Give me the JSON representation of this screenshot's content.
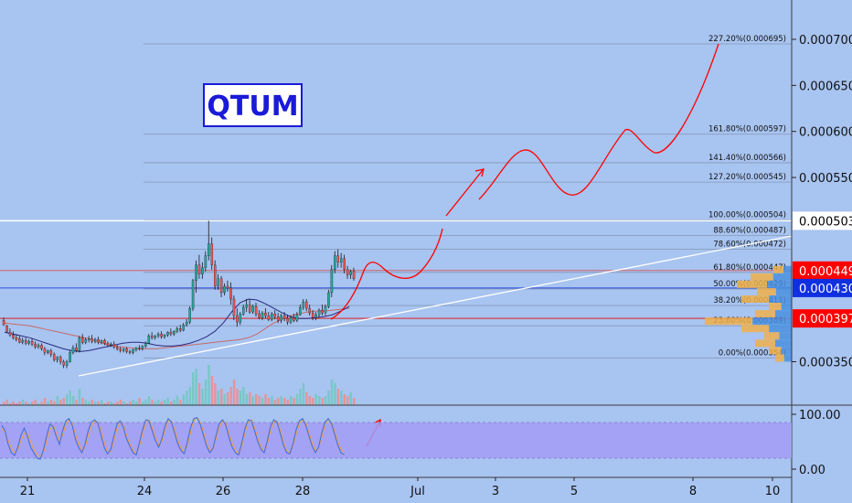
{
  "chart_data": {
    "type": "candlestick",
    "symbol": "QTUM",
    "title": "QTUM",
    "price_axis": {
      "ticks": [
        "0.000700",
        "0.000650",
        "0.000600",
        "0.000550",
        "0.000350"
      ],
      "range": [
        0.00031,
        0.00074
      ]
    },
    "price_badges": [
      {
        "label": "0.000503",
        "value": 0.000503,
        "color": "#ffffff",
        "text_color": "#000000"
      },
      {
        "label": "0.000449",
        "value": 0.000449,
        "color": "#ff0000",
        "text_color": "#ffffff"
      },
      {
        "label": "0.000430",
        "value": 0.00043,
        "color": "#1030e0",
        "text_color": "#ffffff"
      },
      {
        "label": "0.000397",
        "value": 0.000397,
        "color": "#ff0000",
        "text_color": "#ffffff"
      }
    ],
    "fib_levels": [
      {
        "label": "227.20%(0.000695)",
        "value": 0.000695
      },
      {
        "label": "161.80%(0.000597)",
        "value": 0.000597
      },
      {
        "label": "141.40%(0.000566)",
        "value": 0.000566
      },
      {
        "label": "127.20%(0.000545)",
        "value": 0.000545
      },
      {
        "label": "100.00%(0.000504)",
        "value": 0.000504
      },
      {
        "label": "88.60%(0.000487)",
        "value": 0.000487
      },
      {
        "label": "78.60%(0.000472)",
        "value": 0.000472
      },
      {
        "label": "61.80%(0.000447)",
        "value": 0.000447
      },
      {
        "label": "50.00%(0.000429)",
        "value": 0.000429
      },
      {
        "label": "38.20%(0.000411)",
        "value": 0.000411
      },
      {
        "label": "23.60%(0.000389)",
        "value": 0.000389
      },
      {
        "label": "0.00%(0.000354)",
        "value": 0.000354
      }
    ],
    "date_axis": {
      "labels": [
        "21",
        "24",
        "26",
        "28",
        "Jul",
        "3",
        "5",
        "8",
        "10"
      ]
    },
    "oscillator": {
      "ticks": [
        "100.00",
        "0.00"
      ]
    },
    "candles": [
      [
        0.000395,
        0.000398,
        0.00039,
        0.000389
      ],
      [
        0.000389,
        0.00039,
        0.000383,
        0.000381
      ],
      [
        0.000382,
        0.000386,
        0.000379,
        0.000377
      ],
      [
        0.000379,
        0.000383,
        0.000376,
        0.000374
      ],
      [
        0.000376,
        0.00038,
        0.000374,
        0.000372
      ],
      [
        0.000375,
        0.000378,
        0.000371,
        0.00037
      ],
      [
        0.000371,
        0.000376,
        0.000373,
        0.000369
      ],
      [
        0.000373,
        0.000376,
        0.00037,
        0.000368
      ],
      [
        0.00037,
        0.000374,
        0.000372,
        0.000368
      ],
      [
        0.000372,
        0.000375,
        0.000369,
        0.000367
      ],
      [
        0.000369,
        0.000372,
        0.000366,
        0.000364
      ],
      [
        0.000366,
        0.00037,
        0.000368,
        0.000364
      ],
      [
        0.000368,
        0.00037,
        0.000364,
        0.000362
      ],
      [
        0.000364,
        0.000366,
        0.00036,
        0.000357
      ],
      [
        0.00036,
        0.000363,
        0.000362,
        0.000358
      ],
      [
        0.000362,
        0.000364,
        0.000358,
        0.000355
      ],
      [
        0.000358,
        0.00036,
        0.000352,
        0.00035
      ],
      [
        0.000352,
        0.000356,
        0.000355,
        0.000349
      ],
      [
        0.000355,
        0.000357,
        0.00035,
        0.000347
      ],
      [
        0.00035,
        0.000352,
        0.000346,
        0.000343
      ],
      [
        0.000346,
        0.000352,
        0.00035,
        0.000343
      ],
      [
        0.00035,
        0.000362,
        0.00036,
        0.000349
      ],
      [
        0.00036,
        0.000368,
        0.000365,
        0.000358
      ],
      [
        0.000365,
        0.00037,
        0.000362,
        0.00036
      ],
      [
        0.000362,
        0.000378,
        0.000376,
        0.00036
      ],
      [
        0.000376,
        0.00038,
        0.000371,
        0.000369
      ],
      [
        0.000371,
        0.000376,
        0.000374,
        0.000369
      ],
      [
        0.000374,
        0.000378,
        0.000375,
        0.000371
      ],
      [
        0.000375,
        0.000379,
        0.000372,
        0.00037
      ],
      [
        0.000372,
        0.000376,
        0.000374,
        0.00037
      ],
      [
        0.000374,
        0.000377,
        0.000371,
        0.000369
      ],
      [
        0.000371,
        0.000374,
        0.000373,
        0.000369
      ],
      [
        0.000373,
        0.000375,
        0.00037,
        0.000368
      ],
      [
        0.00037,
        0.000372,
        0.000368,
        0.000366
      ],
      [
        0.000368,
        0.000371,
        0.000369,
        0.000366
      ],
      [
        0.000369,
        0.000372,
        0.000366,
        0.000364
      ],
      [
        0.000366,
        0.000368,
        0.000364,
        0.000362
      ],
      [
        0.000364,
        0.000366,
        0.000362,
        0.00036
      ],
      [
        0.000362,
        0.000365,
        0.000364,
        0.00036
      ],
      [
        0.000364,
        0.000366,
        0.000361,
        0.000359
      ],
      [
        0.000361,
        0.000363,
        0.00036,
        0.000358
      ],
      [
        0.00036,
        0.000364,
        0.000363,
        0.000358
      ],
      [
        0.000363,
        0.000366,
        0.000365,
        0.000361
      ],
      [
        0.000365,
        0.000368,
        0.000364,
        0.000362
      ],
      [
        0.000364,
        0.000368,
        0.000367,
        0.000362
      ],
      [
        0.000367,
        0.000372,
        0.00037,
        0.000365
      ],
      [
        0.00037,
        0.00038,
        0.000378,
        0.000369
      ],
      [
        0.000378,
        0.000382,
        0.000376,
        0.000374
      ],
      [
        0.000376,
        0.000379,
        0.000378,
        0.000374
      ],
      [
        0.000378,
        0.000382,
        0.00038,
        0.000376
      ],
      [
        0.00038,
        0.000383,
        0.000377,
        0.000375
      ],
      [
        0.000377,
        0.00038,
        0.000379,
        0.000375
      ],
      [
        0.000379,
        0.000383,
        0.000382,
        0.000377
      ],
      [
        0.000382,
        0.000386,
        0.00038,
        0.000378
      ],
      [
        0.00038,
        0.000384,
        0.000383,
        0.000378
      ],
      [
        0.000383,
        0.000388,
        0.000386,
        0.000381
      ],
      [
        0.000386,
        0.00039,
        0.000384,
        0.000382
      ],
      [
        0.000384,
        0.000392,
        0.00039,
        0.000383
      ],
      [
        0.00039,
        0.000396,
        0.000393,
        0.000388
      ],
      [
        0.000393,
        0.00041,
        0.000408,
        0.000391
      ],
      [
        0.000408,
        0.00044,
        0.000438,
        0.000405
      ],
      [
        0.000438,
        0.00046,
        0.000455,
        0.000425
      ],
      [
        0.000455,
        0.000466,
        0.000445,
        0.00044
      ],
      [
        0.000445,
        0.000458,
        0.000452,
        0.00044
      ],
      [
        0.000452,
        0.00047,
        0.000465,
        0.000448
      ],
      [
        0.000465,
        0.000503,
        0.000478,
        0.00046
      ],
      [
        0.000478,
        0.000485,
        0.000455,
        0.00045
      ],
      [
        0.000455,
        0.00046,
        0.000432,
        0.000428
      ],
      [
        0.000432,
        0.000445,
        0.00044,
        0.000428
      ],
      [
        0.00044,
        0.000443,
        0.000425,
        0.00042
      ],
      [
        0.000425,
        0.000435,
        0.000432,
        0.000422
      ],
      [
        0.000432,
        0.000438,
        0.00043,
        0.000426
      ],
      [
        0.00043,
        0.000436,
        0.000418,
        0.000412
      ],
      [
        0.000418,
        0.000422,
        0.0004,
        0.000395
      ],
      [
        0.0004,
        0.000408,
        0.000393,
        0.000388
      ],
      [
        0.000393,
        0.000404,
        0.000402,
        0.00039
      ],
      [
        0.000402,
        0.000412,
        0.000409,
        0.0004
      ],
      [
        0.000409,
        0.000418,
        0.000412,
        0.000404
      ],
      [
        0.000412,
        0.000418,
        0.000404,
        0.000402
      ],
      [
        0.000404,
        0.000412,
        0.00041,
        0.000402
      ],
      [
        0.00041,
        0.000414,
        0.000402,
        0.000399
      ],
      [
        0.000402,
        0.000406,
        0.000398,
        0.000396
      ],
      [
        0.000398,
        0.000405,
        0.000403,
        0.000395
      ],
      [
        0.000403,
        0.000408,
        0.0004,
        0.000397
      ],
      [
        0.0004,
        0.000404,
        0.000396,
        0.000394
      ],
      [
        0.000396,
        0.000404,
        0.000402,
        0.000394
      ],
      [
        0.000402,
        0.000406,
        0.000399,
        0.000396
      ],
      [
        0.000399,
        0.000403,
        0.000395,
        0.000392
      ],
      [
        0.000395,
        0.000402,
        0.0004,
        0.000392
      ],
      [
        0.0004,
        0.000404,
        0.000397,
        0.000394
      ],
      [
        0.000397,
        0.000401,
        0.000393,
        0.00039
      ],
      [
        0.000393,
        0.0004,
        0.000398,
        0.000391
      ],
      [
        0.000398,
        0.000402,
        0.000395,
        0.000393
      ],
      [
        0.000395,
        0.000404,
        0.000401,
        0.000393
      ],
      [
        0.000401,
        0.000412,
        0.000409,
        0.0004
      ],
      [
        0.000409,
        0.000418,
        0.000415,
        0.000406
      ],
      [
        0.000415,
        0.000418,
        0.000408,
        0.000405
      ],
      [
        0.000408,
        0.000412,
        0.000403,
        0.0004
      ],
      [
        0.000403,
        0.000406,
        0.000398,
        0.000395
      ],
      [
        0.000398,
        0.000404,
        0.000401,
        0.000395
      ],
      [
        0.000401,
        0.000408,
        0.000406,
        0.000398
      ],
      [
        0.000406,
        0.000412,
        0.000403,
        0.0004
      ],
      [
        0.000403,
        0.000412,
        0.00041,
        0.0004
      ],
      [
        0.00041,
        0.000428,
        0.000425,
        0.000408
      ],
      [
        0.000425,
        0.000455,
        0.00045,
        0.00042
      ],
      [
        0.00045,
        0.00047,
        0.000465,
        0.000446
      ],
      [
        0.000465,
        0.000472,
        0.000458,
        0.000452
      ],
      [
        0.000458,
        0.000468,
        0.000462,
        0.000452
      ],
      [
        0.000462,
        0.000466,
        0.00045,
        0.000446
      ],
      [
        0.00045,
        0.000454,
        0.000444,
        0.00044
      ],
      [
        0.000444,
        0.00045,
        0.000448,
        0.00044
      ],
      [
        0.000448,
        0.000452,
        0.00044,
        0.000438
      ]
    ],
    "volume": [
      2,
      3,
      1,
      2,
      1,
      2,
      3,
      2,
      1,
      2,
      3,
      1,
      2,
      4,
      2,
      3,
      2,
      5,
      3,
      4,
      6,
      8,
      5,
      3,
      9,
      4,
      3,
      2,
      3,
      2,
      2,
      3,
      1,
      2,
      2,
      1,
      2,
      3,
      2,
      1,
      2,
      3,
      2,
      4,
      2,
      3,
      5,
      3,
      2,
      3,
      2,
      3,
      4,
      2,
      3,
      5,
      3,
      6,
      8,
      10,
      18,
      20,
      12,
      9,
      14,
      22,
      16,
      12,
      8,
      9,
      6,
      7,
      10,
      14,
      9,
      8,
      10,
      6,
      7,
      5,
      6,
      5,
      4,
      6,
      4,
      5,
      3,
      4,
      5,
      4,
      3,
      5,
      4,
      6,
      9,
      12,
      7,
      5,
      4,
      6,
      5,
      4,
      5,
      8,
      14,
      12,
      9,
      8,
      6,
      5,
      7,
      4
    ],
    "ma_slow": [
      0.000392,
      0.000391,
      0.00039,
      0.000389,
      0.000387,
      0.000385,
      0.000383,
      0.000381,
      0.000379,
      0.000377,
      0.000375,
      0.000372,
      0.000369,
      0.000367,
      0.000366,
      0.000365,
      0.000364,
      0.000364,
      0.000364,
      0.000365,
      0.000366,
      0.000367,
      0.000368,
      0.000369,
      0.00037,
      0.000371,
      0.000372,
      0.000373,
      0.000374,
      0.000376,
      0.00038,
      0.000386,
      0.000392,
      0.000396,
      0.0004,
      0.000402,
      0.000404,
      0.000405,
      0.000405,
      0.000406,
      0.000407,
      0.000408
    ],
    "ma_fast": [
      0.000382,
      0.00038,
      0.000378,
      0.000376,
      0.000373,
      0.00037,
      0.000367,
      0.000364,
      0.000362,
      0.000361,
      0.000362,
      0.000364,
      0.000366,
      0.000368,
      0.00037,
      0.000371,
      0.000371,
      0.00037,
      0.000368,
      0.000367,
      0.000367,
      0.000368,
      0.00037,
      0.000373,
      0.000377,
      0.000383,
      0.000392,
      0.000404,
      0.000414,
      0.000418,
      0.000417,
      0.000413,
      0.000408,
      0.000403,
      0.000399,
      0.000397,
      0.000397,
      0.000398,
      0.000399,
      0.000401,
      0.000405,
      0.00041
    ],
    "stoch_k": [
      80,
      70,
      45,
      30,
      25,
      40,
      62,
      75,
      60,
      40,
      30,
      20,
      18,
      35,
      60,
      82,
      78,
      60,
      45,
      70,
      88,
      92,
      80,
      55,
      40,
      30,
      45,
      70,
      86,
      90,
      84,
      62,
      40,
      28,
      35,
      60,
      82,
      88,
      76,
      55,
      42,
      30,
      26,
      48,
      72,
      90,
      88,
      70,
      52,
      40,
      55,
      78,
      92,
      86,
      66,
      46,
      34,
      28,
      50,
      76,
      92,
      94,
      82,
      62,
      42,
      30,
      38,
      62,
      84,
      90,
      80,
      58,
      40,
      30,
      26,
      48,
      74,
      90,
      88,
      70,
      50,
      36,
      30,
      52,
      78,
      90,
      86,
      66,
      44,
      30,
      28,
      46,
      72,
      88,
      92,
      80,
      60,
      42,
      30,
      40,
      66,
      86,
      92,
      84,
      64,
      44,
      30,
      26
    ],
    "stoch_d": [
      74,
      68,
      52,
      38,
      30,
      36,
      52,
      66,
      64,
      50,
      36,
      26,
      22,
      30,
      50,
      72,
      80,
      66,
      52,
      62,
      82,
      90,
      84,
      64,
      46,
      34,
      40,
      60,
      80,
      88,
      86,
      70,
      48,
      32,
      32,
      52,
      74,
      86,
      80,
      62,
      46,
      34,
      28,
      42,
      64,
      84,
      90,
      76,
      58,
      44,
      50,
      70,
      88,
      88,
      72,
      52,
      38,
      30,
      44,
      68,
      88,
      94,
      86,
      68,
      48,
      34,
      36,
      56,
      78,
      88,
      84,
      64,
      46,
      34,
      28,
      42,
      66,
      86,
      90,
      76,
      56,
      40,
      32,
      46,
      70,
      86,
      88,
      72,
      50,
      34,
      30,
      42,
      64,
      84,
      90,
      84,
      66,
      48,
      34,
      38,
      58,
      80,
      90,
      86,
      70,
      50,
      36,
      30
    ]
  },
  "watermark": {
    "text": "QTUM"
  },
  "colors": {
    "background": "#a8c4f0",
    "bull": "#26a69a",
    "bear": "#ef5350",
    "fib_line": "#7b8da8",
    "trend_line": "#ffffff",
    "projection": "#ff0000",
    "oscillator_band": "#a29cf4",
    "stoch_k": "#3d6bd8",
    "stoch_d": "#f2a040"
  }
}
